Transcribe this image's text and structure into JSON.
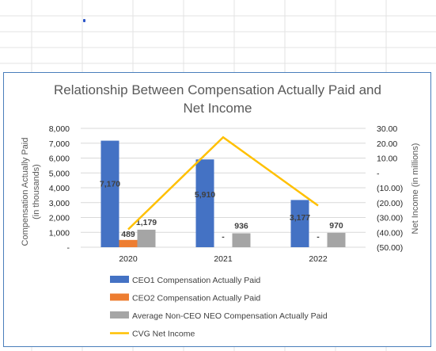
{
  "colors": {
    "ceo1": "#4472c4",
    "ceo2": "#ed7d31",
    "non_ceo": "#a5a5a5",
    "net_income": "#ffc000",
    "frame": "#4a7ebb"
  },
  "chart_data": {
    "type": "bar",
    "title_lines": [
      "Relationship Between Compensation Actually Paid and",
      "Net Income"
    ],
    "categories": [
      "2020",
      "2021",
      "2022"
    ],
    "ylabel_left": [
      "Compensation Actually Paid",
      "(in thousands)"
    ],
    "ylabel_right": "Net Income (in millions)",
    "ylim_left": [
      0,
      8000
    ],
    "ylim_right": [
      -50,
      30
    ],
    "left_ticks": [
      "-",
      "1,000",
      "2,000",
      "3,000",
      "4,000",
      "5,000",
      "6,000",
      "7,000",
      "8,000"
    ],
    "right_ticks": [
      "(50.00)",
      "(40.00)",
      "(30.00)",
      "(20.00)",
      "(10.00)",
      "-",
      "10.00",
      "20.00",
      "30.00"
    ],
    "grid": true,
    "legend_position": "bottom",
    "series": [
      {
        "name": "CEO1 Compensation Actually Paid",
        "kind": "bar",
        "axis": "left",
        "values": [
          7170,
          5910,
          3177
        ],
        "labels": [
          "7,170",
          "5,910",
          "3,177"
        ]
      },
      {
        "name": "CEO2 Compensation Actually Paid",
        "kind": "bar",
        "axis": "left",
        "values": [
          489,
          0,
          0
        ],
        "labels": [
          "489",
          "-",
          "-"
        ]
      },
      {
        "name": "Average Non-CEO NEO Compensation Actually Paid",
        "kind": "bar",
        "axis": "left",
        "values": [
          1179,
          936,
          970
        ],
        "labels": [
          "1,179",
          "936",
          "970"
        ]
      },
      {
        "name": "CVG Net Income",
        "kind": "line",
        "axis": "right",
        "values": [
          -38,
          24,
          -22
        ]
      }
    ]
  }
}
